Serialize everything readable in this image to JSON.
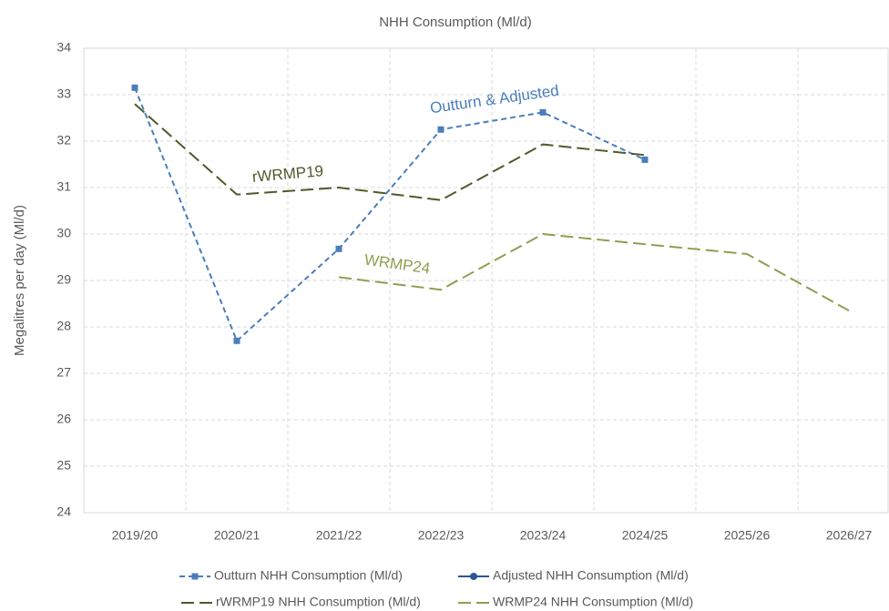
{
  "chart_data": {
    "type": "line",
    "title": "NHH Consumption (Ml/d)",
    "y_label": "Megalitres per day (Ml/d)",
    "categories": [
      "2019/20",
      "2020/21",
      "2021/22",
      "2022/23",
      "2023/24",
      "2024/25",
      "2025/26",
      "2026/27"
    ],
    "series": [
      {
        "name": "Outturn NHH Consumption (Ml/d)",
        "color": "#4a7ebb",
        "dash": "6 4",
        "marker": "square",
        "values": [
          33.15,
          27.7,
          29.68,
          32.25,
          32.62,
          31.6,
          null,
          null
        ]
      },
      {
        "name": "Adjusted NHH Consumption (Ml/d)",
        "color": "#2e5597",
        "dash": "none",
        "marker": "circle",
        "values": [
          null,
          null,
          null,
          null,
          null,
          null,
          null,
          null
        ]
      },
      {
        "name": "rWRMP19 NHH Consumption (Ml/d)",
        "color": "#4f5a2a",
        "dash": "14 6",
        "marker": "none",
        "values": [
          32.8,
          30.85,
          31.0,
          30.73,
          31.93,
          31.7,
          null,
          null
        ]
      },
      {
        "name": "WRMP24 NHH Consumption (Ml/d)",
        "color": "#8ca050",
        "dash": "14 6",
        "marker": "none",
        "values": [
          null,
          null,
          29.07,
          28.8,
          30.0,
          29.78,
          29.57,
          28.35
        ]
      }
    ],
    "annotations": [
      {
        "text": "Outturn & Adjusted",
        "color": "#4a7ebb"
      },
      {
        "text": "rWRMP19",
        "color": "#4f5a2a"
      },
      {
        "text": "WRMP24",
        "color": "#8ca050"
      }
    ],
    "ylim": [
      24,
      34
    ],
    "yticks": [
      24,
      25,
      26,
      27,
      28,
      29,
      30,
      31,
      32,
      33,
      34
    ],
    "grid": true,
    "legend": "bottom"
  }
}
